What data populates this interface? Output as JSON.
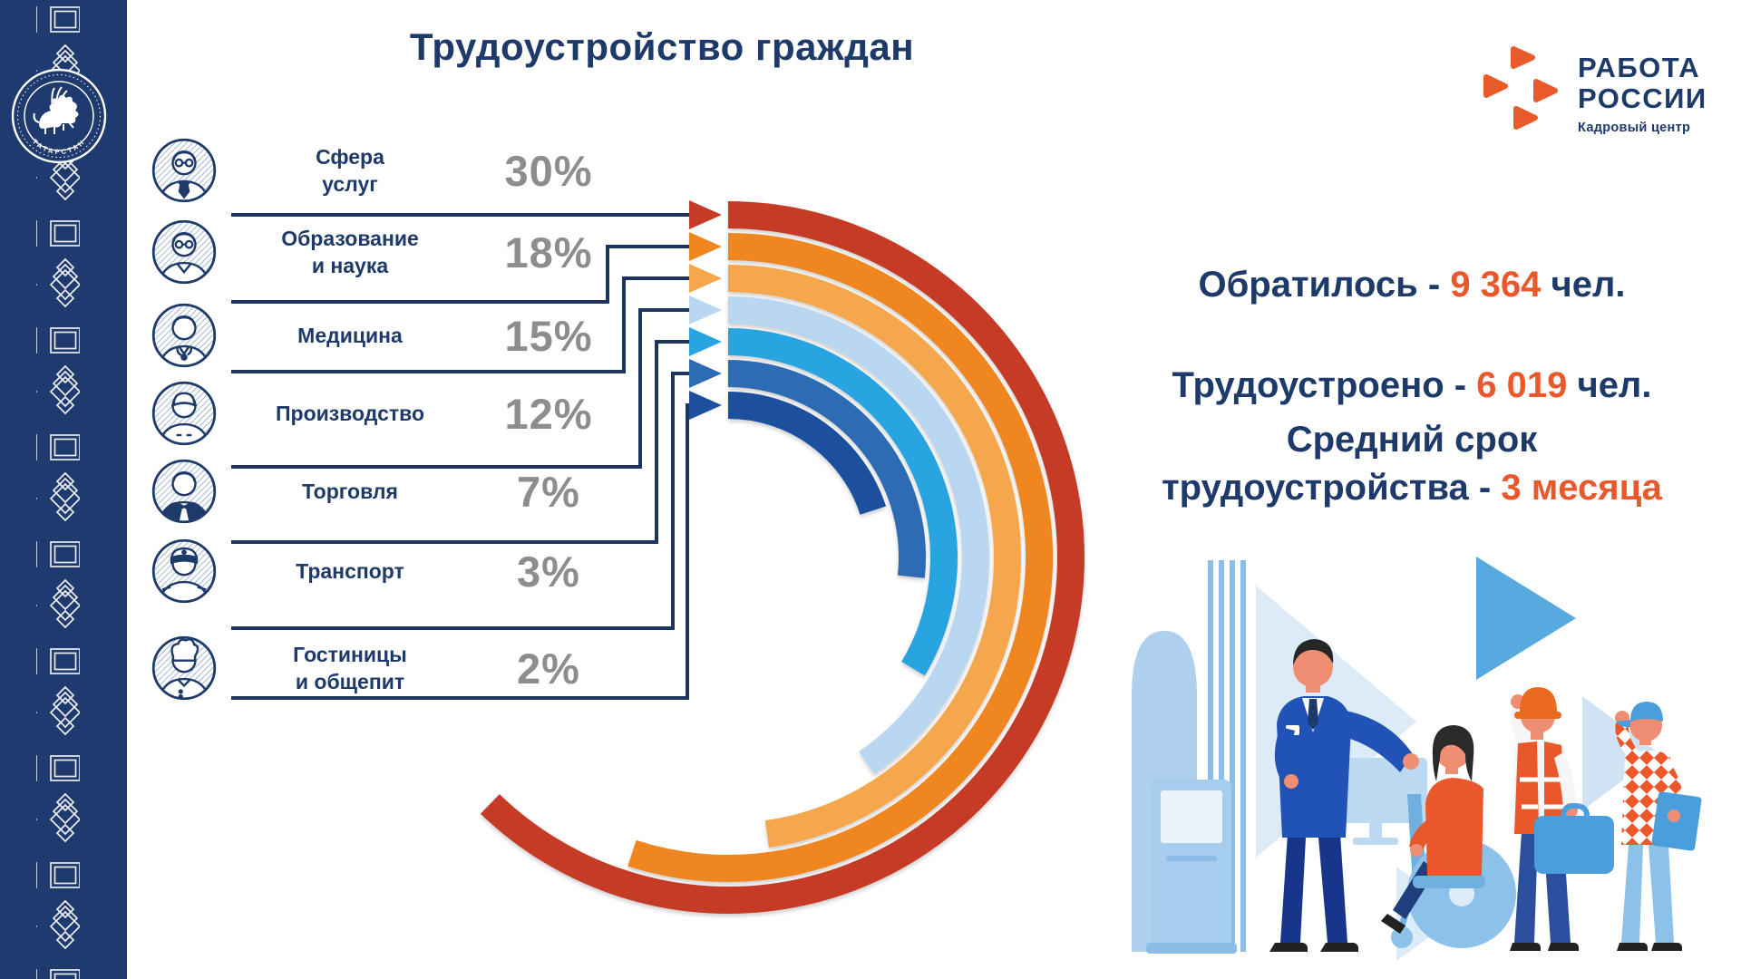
{
  "header": {
    "title": "Трудоустройство граждан"
  },
  "logo": {
    "line1": "РАБОТА",
    "line2": "РОССИИ",
    "subtitle": "Кадровый центр",
    "mark_color": "#ea5b2c"
  },
  "sidebar": {
    "emblem_text": "ТАТАРСТАН",
    "background": "#1f3a6e"
  },
  "accent": {
    "navy": "#1d3a6a",
    "orange": "#e9582b",
    "gray": "#8b8d8e",
    "line": "#1b355f"
  },
  "sectors": [
    {
      "icon": "service-worker-avatar-icon",
      "lines": [
        "Сфера",
        "услуг"
      ],
      "percent": "30%",
      "value": 30,
      "color": "#c53b26"
    },
    {
      "icon": "teacher-avatar-icon",
      "lines": [
        "Образование",
        "и наука"
      ],
      "percent": "18%",
      "value": 18,
      "color": "#ef861f"
    },
    {
      "icon": "doctor-avatar-icon",
      "lines": [
        "Медицина"
      ],
      "percent": "15%",
      "value": 15,
      "color": "#f6a74c"
    },
    {
      "icon": "factory-worker-avatar-icon",
      "lines": [
        "Производство"
      ],
      "percent": "12%",
      "value": 12,
      "color": "#b9d7f1"
    },
    {
      "icon": "waiter-avatar-icon",
      "lines": [
        "Торговля"
      ],
      "percent": "7%",
      "value": 7,
      "color": "#28a4e0"
    },
    {
      "icon": "captain-avatar-icon",
      "lines": [
        "Транспорт"
      ],
      "percent": "3%",
      "value": 3,
      "color": "#2d6cb4"
    },
    {
      "icon": "chef-avatar-icon",
      "lines": [
        "Гостиницы",
        "и общепит"
      ],
      "percent": "2%",
      "value": 2,
      "color": "#1c509f"
    }
  ],
  "stats": [
    {
      "prefix": "Обратилось - ",
      "value": "9 364",
      "suffix": " чел."
    },
    {
      "prefix": "Трудоустроено - ",
      "value": "6 019",
      "suffix": " чел."
    },
    {
      "line1": "Средний срок",
      "prefix": "трудоустройства - ",
      "value": "3 месяца"
    }
  ],
  "chart_data": {
    "type": "bar",
    "variant": "radial-arc",
    "title": "Трудоустройство граждан",
    "categories": [
      "Сфера услуг",
      "Образование и наука",
      "Медицина",
      "Производство",
      "Торговля",
      "Транспорт",
      "Гостиницы и общепит"
    ],
    "values": [
      30,
      18,
      15,
      12,
      7,
      3,
      2
    ],
    "unit": "%",
    "series_colors": [
      "#c53b26",
      "#ef861f",
      "#f6a74c",
      "#b9d7f1",
      "#28a4e0",
      "#2d6cb4",
      "#1c509f"
    ],
    "sweep_degrees": [
      224,
      198,
      172,
      146,
      121,
      96,
      72
    ],
    "legend_position": "left",
    "grid": false,
    "annotations": [
      "Обратилось - 9 364 чел.",
      "Трудоустроено - 6 019 чел.",
      "Средний срок трудоустройства - 3 месяца"
    ]
  }
}
